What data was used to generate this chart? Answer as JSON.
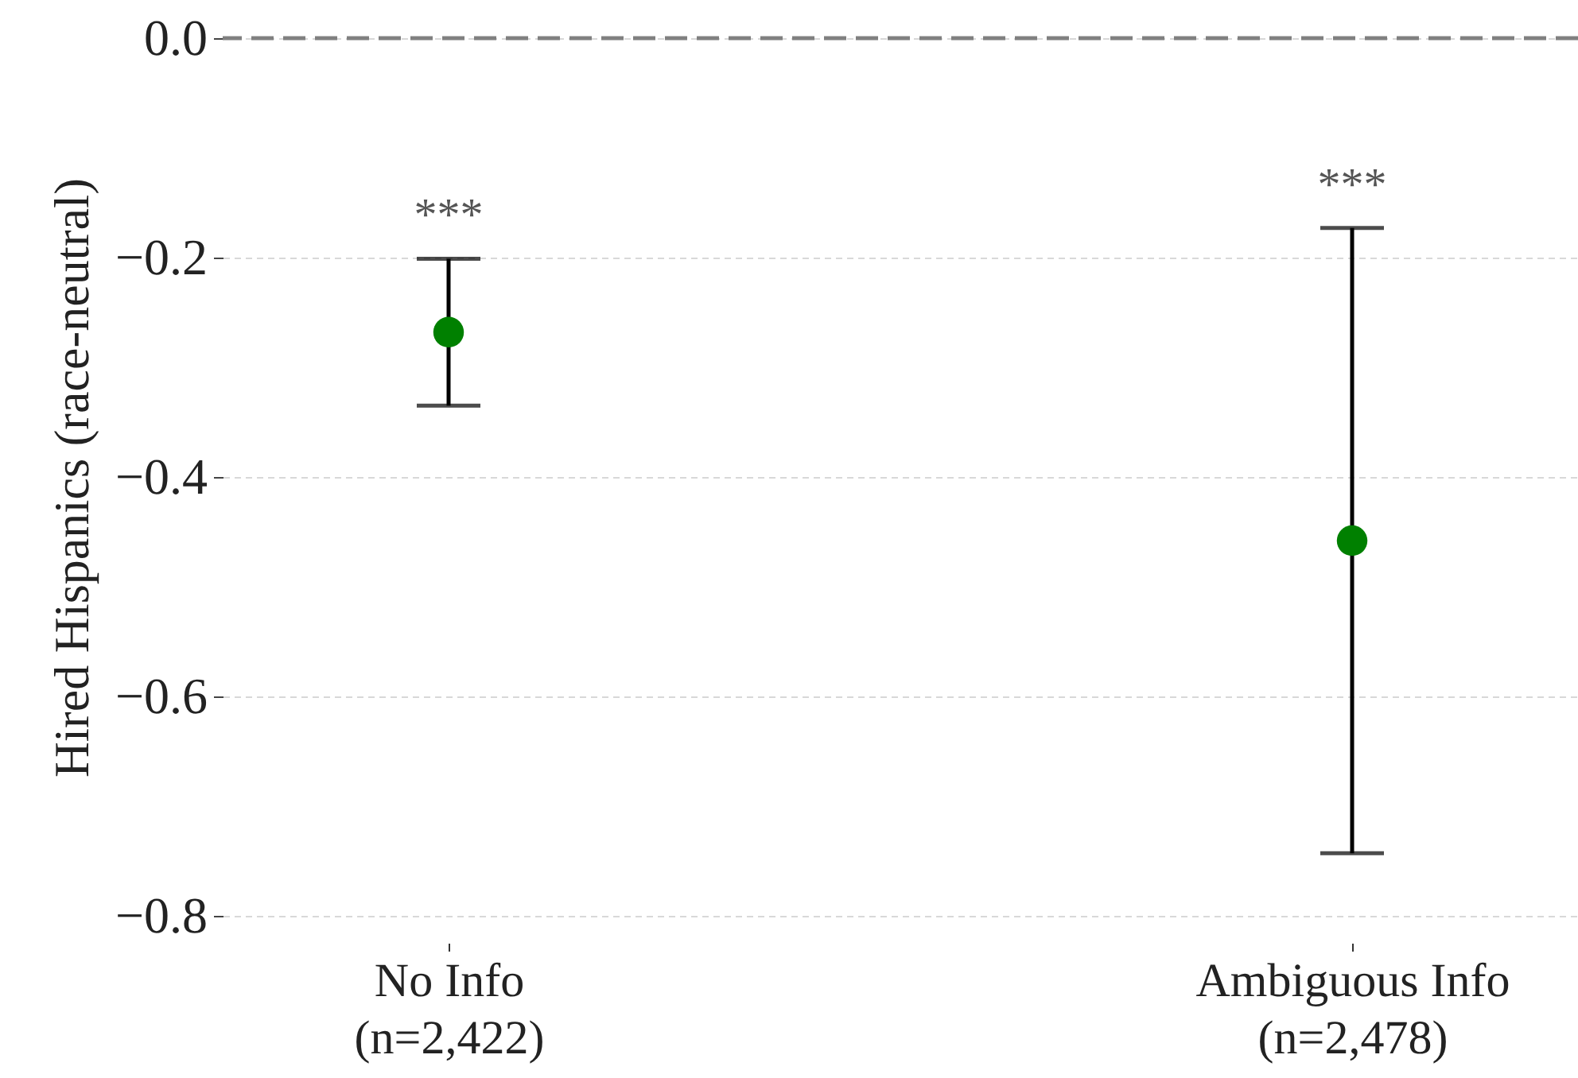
{
  "chart_data": {
    "type": "scatter",
    "ylabel": "Hired Hispanics (race-neutral)",
    "categories": [
      "No Info\n(n=2,422)",
      "Ambiguous Info\n(n=2,478)"
    ],
    "values": [
      -0.268,
      -0.458
    ],
    "errors": [
      0.067,
      0.285
    ],
    "color": "#008000",
    "marker": "circle",
    "ylim": [
      -0.8,
      0.0
    ],
    "yticks": [
      {
        "value": 0,
        "label": "0.0"
      },
      {
        "value": -0.2,
        "label": "−0.2"
      },
      {
        "value": -0.4,
        "label": "−0.4"
      },
      {
        "value": -0.6,
        "label": "−0.6"
      },
      {
        "value": -0.8,
        "label": "−0.8"
      }
    ],
    "grid": "y",
    "ref_lines": [
      {
        "axis": "y",
        "value": 0,
        "color": "#808080",
        "line_style": "dashed"
      }
    ],
    "annotations": [
      "***",
      "***"
    ]
  }
}
